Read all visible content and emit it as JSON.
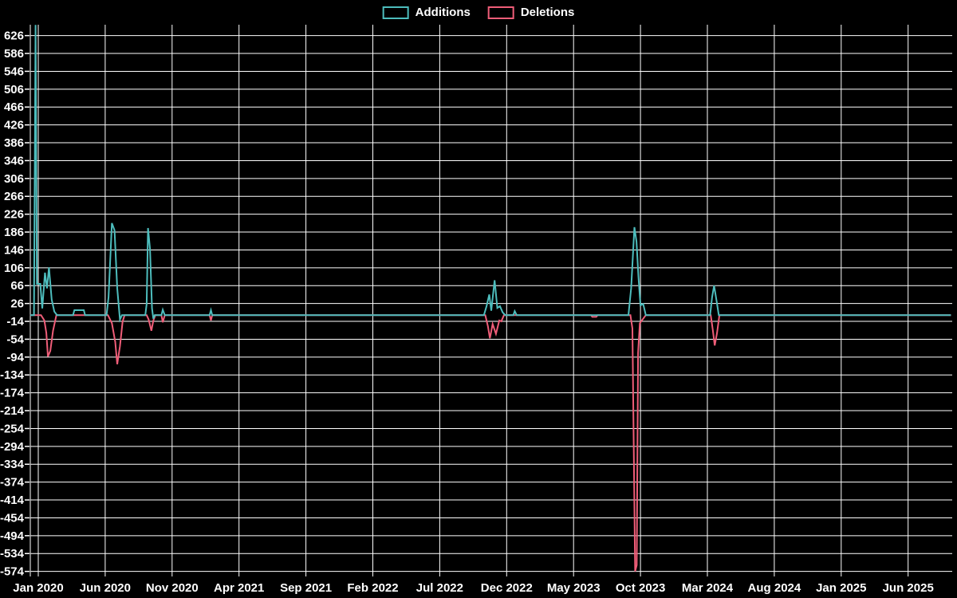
{
  "page": {
    "background": "#000000",
    "text_color": "#ffffff",
    "grid_color": "#ffffff"
  },
  "legend": {
    "items": [
      {
        "label": "Additions",
        "color": "#4dbdbd"
      },
      {
        "label": "Deletions",
        "color": "#ef5d78"
      }
    ]
  },
  "chart_data": {
    "type": "line",
    "title": "",
    "grid": true,
    "legend_position": "top-center",
    "background": "#000000",
    "y_axis": {
      "tick_step": 40,
      "ticks": [
        626,
        586,
        546,
        506,
        466,
        426,
        386,
        346,
        306,
        266,
        226,
        186,
        146,
        106,
        66,
        26,
        -14,
        -54,
        -94,
        -134,
        -174,
        -214,
        -254,
        -294,
        -334,
        -374,
        -414,
        -454,
        -494,
        -534,
        -574
      ],
      "range": [
        -585,
        650
      ]
    },
    "x_axis": {
      "unit": "months since Jan 2020",
      "range_months": [
        -0.6,
        68.2
      ],
      "ticks": [
        {
          "label": "Jan 2020",
          "m": 0
        },
        {
          "label": "Jun 2020",
          "m": 5
        },
        {
          "label": "Nov 2020",
          "m": 10
        },
        {
          "label": "Apr 2021",
          "m": 15
        },
        {
          "label": "Sep 2021",
          "m": 20
        },
        {
          "label": "Feb 2022",
          "m": 25
        },
        {
          "label": "Jul 2022",
          "m": 30
        },
        {
          "label": "Dec 2022",
          "m": 35
        },
        {
          "label": "May 2023",
          "m": 40
        },
        {
          "label": "Oct 2023",
          "m": 45
        },
        {
          "label": "Mar 2024",
          "m": 50
        },
        {
          "label": "Aug 2024",
          "m": 55
        },
        {
          "label": "Jan 2025",
          "m": 60
        },
        {
          "label": "Jun 2025",
          "m": 65
        }
      ]
    },
    "series": [
      {
        "name": "Deletions",
        "color": "#ef5d78",
        "points": [
          [
            -0.6,
            0
          ],
          [
            0.2,
            0
          ],
          [
            0.45,
            -12
          ],
          [
            0.6,
            -40
          ],
          [
            0.72,
            -93
          ],
          [
            0.9,
            -80
          ],
          [
            1.1,
            -35
          ],
          [
            1.35,
            0
          ],
          [
            5.2,
            0
          ],
          [
            5.5,
            -18
          ],
          [
            5.75,
            -60
          ],
          [
            5.9,
            -110
          ],
          [
            6.1,
            -70
          ],
          [
            6.3,
            -15
          ],
          [
            6.45,
            0
          ],
          [
            8.1,
            0
          ],
          [
            8.25,
            -10
          ],
          [
            8.45,
            -35
          ],
          [
            8.6,
            -12
          ],
          [
            8.75,
            0
          ],
          [
            9.2,
            0
          ],
          [
            9.3,
            -16
          ],
          [
            9.45,
            0
          ],
          [
            12.8,
            0
          ],
          [
            12.9,
            -12
          ],
          [
            13.0,
            0
          ],
          [
            33.4,
            0
          ],
          [
            33.6,
            -25
          ],
          [
            33.75,
            -52
          ],
          [
            33.95,
            -20
          ],
          [
            34.2,
            -42
          ],
          [
            34.45,
            -12
          ],
          [
            34.6,
            -14
          ],
          [
            34.8,
            0
          ],
          [
            41.3,
            0
          ],
          [
            41.4,
            -4
          ],
          [
            41.7,
            -4
          ],
          [
            41.8,
            0
          ],
          [
            44.25,
            0
          ],
          [
            44.4,
            -30
          ],
          [
            44.6,
            -574
          ],
          [
            44.72,
            -560
          ],
          [
            44.82,
            -85
          ],
          [
            44.95,
            -18
          ],
          [
            45.2,
            -8
          ],
          [
            45.4,
            0
          ],
          [
            50.25,
            0
          ],
          [
            50.4,
            -32
          ],
          [
            50.55,
            -68
          ],
          [
            50.72,
            -40
          ],
          [
            50.9,
            0
          ],
          [
            68.2,
            0
          ]
        ]
      },
      {
        "name": "Additions",
        "color": "#4dbdbd",
        "points": [
          [
            -0.6,
            0
          ],
          [
            -0.32,
            0
          ],
          [
            -0.2,
            650
          ],
          [
            -0.1,
            70
          ],
          [
            0.15,
            70
          ],
          [
            0.3,
            15
          ],
          [
            0.5,
            95
          ],
          [
            0.65,
            60
          ],
          [
            0.8,
            107
          ],
          [
            1.0,
            35
          ],
          [
            1.2,
            8
          ],
          [
            1.4,
            0
          ],
          [
            2.6,
            0
          ],
          [
            2.7,
            11
          ],
          [
            3.4,
            11
          ],
          [
            3.5,
            0
          ],
          [
            5.1,
            0
          ],
          [
            5.25,
            40
          ],
          [
            5.5,
            206
          ],
          [
            5.7,
            190
          ],
          [
            5.9,
            60
          ],
          [
            6.1,
            -10
          ],
          [
            6.25,
            0
          ],
          [
            8.0,
            0
          ],
          [
            8.1,
            25
          ],
          [
            8.2,
            195
          ],
          [
            8.35,
            148
          ],
          [
            8.5,
            15
          ],
          [
            8.6,
            -8
          ],
          [
            8.7,
            0
          ],
          [
            9.2,
            0
          ],
          [
            9.3,
            12
          ],
          [
            9.45,
            0
          ],
          [
            12.8,
            0
          ],
          [
            12.9,
            11
          ],
          [
            13.0,
            0
          ],
          [
            33.3,
            0
          ],
          [
            33.5,
            20
          ],
          [
            33.7,
            46
          ],
          [
            33.85,
            10
          ],
          [
            34.1,
            78
          ],
          [
            34.3,
            16
          ],
          [
            34.5,
            20
          ],
          [
            34.7,
            6
          ],
          [
            34.9,
            0
          ],
          [
            35.5,
            0
          ],
          [
            35.6,
            9
          ],
          [
            35.75,
            0
          ],
          [
            44.1,
            0
          ],
          [
            44.3,
            60
          ],
          [
            44.55,
            197
          ],
          [
            44.7,
            165
          ],
          [
            44.85,
            85
          ],
          [
            45.0,
            22
          ],
          [
            45.2,
            25
          ],
          [
            45.4,
            0
          ],
          [
            50.2,
            0
          ],
          [
            50.35,
            40
          ],
          [
            50.5,
            66
          ],
          [
            50.7,
            30
          ],
          [
            50.85,
            0
          ],
          [
            68.2,
            0
          ]
        ]
      }
    ]
  }
}
